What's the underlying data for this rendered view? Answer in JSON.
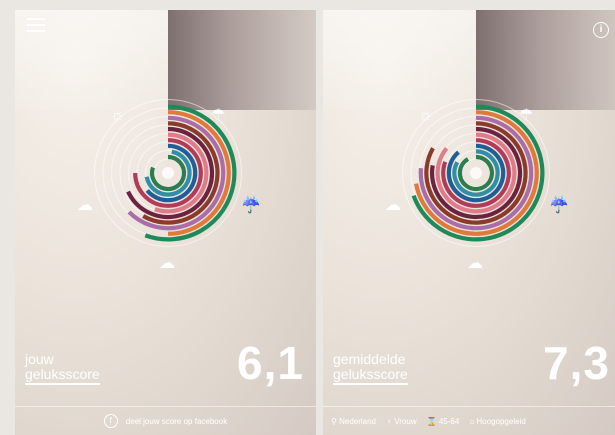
{
  "left_panel": {
    "label_line1": "jouw",
    "label_line2": "geluksscore",
    "score": "6,1",
    "footer_text": "deel jouw score op facebook",
    "facebook_icon_glyph": "f"
  },
  "right_panel": {
    "label_line1": "gemiddelde",
    "label_line2": "geluksscore",
    "score": "7,3",
    "info_icon_glyph": "i",
    "filters": {
      "country": "Nederland",
      "gender": "Vrouw",
      "age": "45-64",
      "education": "Hoogopgeleid"
    }
  },
  "icons": {
    "menu": "hamburger-icon",
    "info": "info-icon",
    "weather": [
      "sun-icon",
      "rain-storm-icon",
      "cloud-sun-icon",
      "cloud-rain-icon",
      "cloud-icon"
    ]
  },
  "colors": {
    "ring_palette": [
      "#2e7d4f",
      "#2f8fa8",
      "#1f5f96",
      "#b23b58",
      "#e07b8a",
      "#6b2340",
      "#8a3b2a",
      "#a96ea9",
      "#e07a3a",
      "#1e8a5a"
    ]
  }
}
